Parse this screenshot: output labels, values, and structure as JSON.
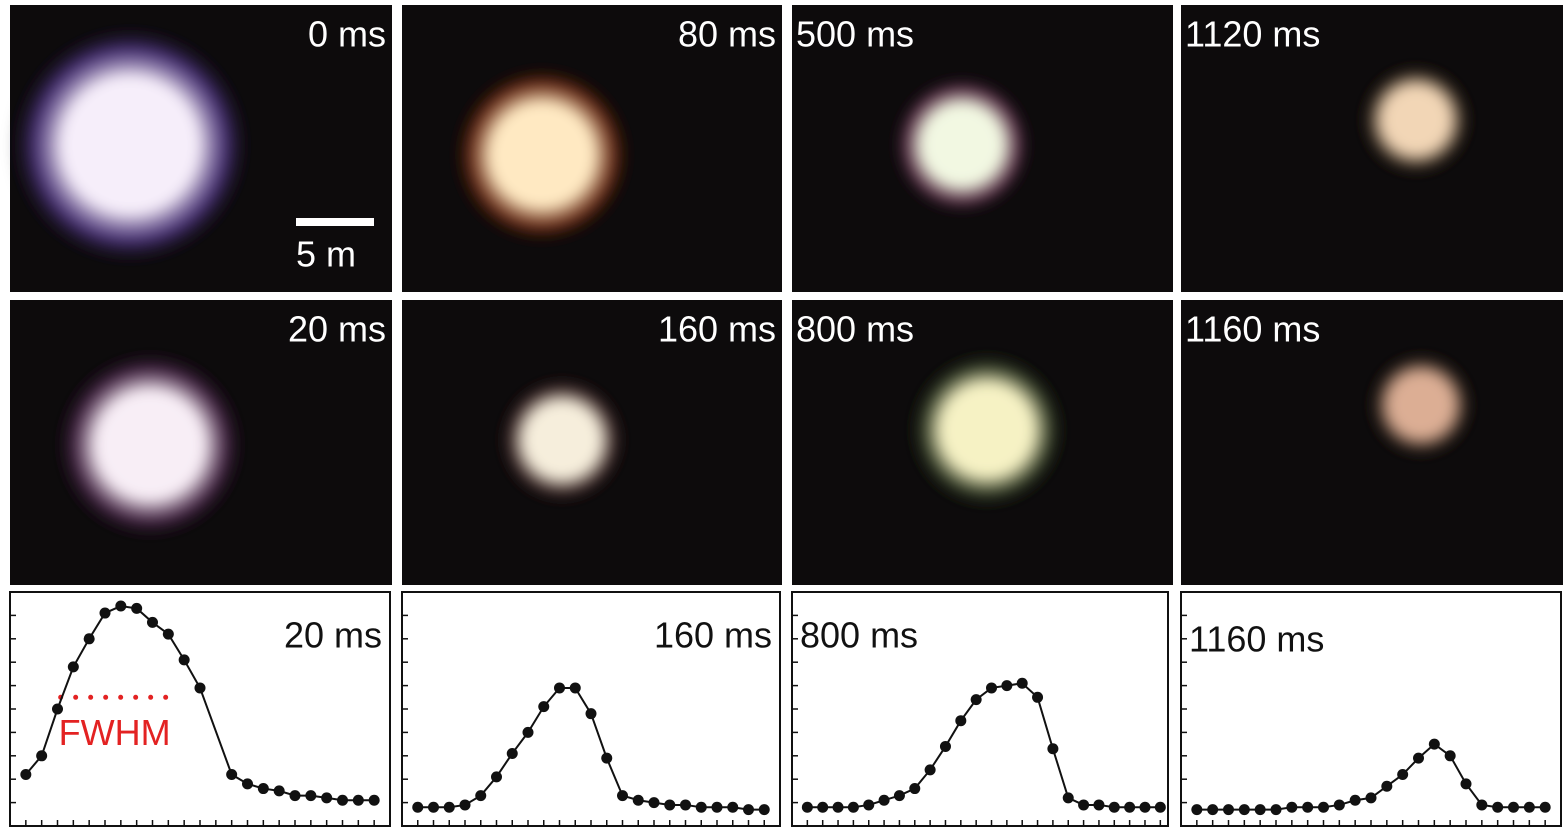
{
  "panels": [
    {
      "label": "0 ms"
    },
    {
      "label": "80 ms"
    },
    {
      "label": "500 ms"
    },
    {
      "label": "1120 ms"
    },
    {
      "label": "20 ms"
    },
    {
      "label": "160 ms"
    },
    {
      "label": "800 ms"
    },
    {
      "label": "1160 ms"
    }
  ],
  "scale_bar": "5 m",
  "chart_data": [
    {
      "type": "line",
      "title": "20 ms",
      "color": "#111111",
      "x": [
        1,
        2,
        3,
        4,
        5,
        6,
        7,
        8,
        9,
        10,
        11,
        12,
        14,
        15,
        16,
        17,
        18,
        19,
        20,
        21,
        22,
        23
      ],
      "values": [
        22,
        30,
        50,
        68,
        80,
        91,
        94,
        93,
        87,
        82,
        71,
        59,
        22,
        18,
        16,
        15,
        13,
        13,
        12,
        11,
        11,
        11
      ],
      "xlim": [
        0,
        24
      ],
      "ylim": [
        0,
        100
      ],
      "xticks": [
        0,
        1,
        2,
        3,
        4,
        5,
        6,
        7,
        8,
        9,
        10,
        11,
        12,
        13,
        14,
        15,
        16,
        17,
        18,
        19,
        20,
        21,
        22,
        23,
        24
      ],
      "yticks": [
        0,
        10,
        20,
        30,
        40,
        50,
        60,
        70,
        80,
        90,
        100
      ],
      "annotation": {
        "text": "FWHM",
        "y": 55,
        "x": [
          3.2,
          10.7
        ],
        "color": "#e32222"
      }
    },
    {
      "type": "line",
      "title": "160 ms",
      "color": "#111111",
      "x": [
        1,
        2,
        3,
        4,
        5,
        6,
        7,
        8,
        9,
        10,
        11,
        12,
        13,
        14,
        15,
        16,
        17,
        18,
        19,
        20,
        21,
        22,
        23
      ],
      "values": [
        8,
        8,
        8,
        9,
        13,
        21,
        31,
        40,
        51,
        59,
        59,
        48,
        29,
        13,
        11,
        10,
        9,
        9,
        8,
        8,
        8,
        7,
        7
      ],
      "xlim": [
        0,
        24
      ],
      "ylim": [
        0,
        100
      ],
      "xticks": [
        0,
        1,
        2,
        3,
        4,
        5,
        6,
        7,
        8,
        9,
        10,
        11,
        12,
        13,
        14,
        15,
        16,
        17,
        18,
        19,
        20,
        21,
        22,
        23,
        24
      ],
      "yticks": [
        0,
        10,
        20,
        30,
        40,
        50,
        60,
        70,
        80,
        90,
        100
      ]
    },
    {
      "type": "line",
      "title": "800 ms",
      "color": "#111111",
      "x": [
        1,
        2,
        3,
        4,
        5,
        6,
        7,
        8,
        9,
        10,
        11,
        12,
        13,
        14,
        15,
        16,
        17,
        18,
        19,
        20,
        21,
        22,
        23,
        24
      ],
      "values": [
        8,
        8,
        8,
        8,
        9,
        11,
        13,
        16,
        24,
        34,
        45,
        54,
        59,
        60,
        61,
        55,
        33,
        12,
        9,
        9,
        8,
        8,
        8,
        8
      ],
      "xlim": [
        0,
        24.5
      ],
      "ylim": [
        0,
        100
      ],
      "xticks": [
        0,
        1,
        2,
        3,
        4,
        5,
        6,
        7,
        8,
        9,
        10,
        11,
        12,
        13,
        14,
        15,
        16,
        17,
        18,
        19,
        20,
        21,
        22,
        23,
        24
      ],
      "yticks": [
        0,
        10,
        20,
        30,
        40,
        50,
        60,
        70,
        80,
        90,
        100
      ]
    },
    {
      "type": "line",
      "title": "1160 ms",
      "color": "#111111",
      "x": [
        1,
        2,
        3,
        4,
        5,
        6,
        7,
        8,
        9,
        10,
        11,
        12,
        13,
        14,
        15,
        16,
        17,
        18,
        19,
        20,
        21,
        22,
        23
      ],
      "values": [
        7,
        7,
        7,
        7,
        7,
        7,
        8,
        8,
        8,
        9,
        11,
        12,
        17,
        22,
        29,
        35,
        30,
        18,
        9,
        8,
        8,
        8,
        8
      ],
      "xlim": [
        0,
        24
      ],
      "ylim": [
        0,
        100
      ],
      "xticks": [
        0,
        1,
        2,
        3,
        4,
        5,
        6,
        7,
        8,
        9,
        10,
        11,
        12,
        13,
        14,
        15,
        16,
        17,
        18,
        19,
        20,
        21,
        22,
        23,
        24
      ],
      "yticks": [
        0,
        10,
        20,
        30,
        40,
        50,
        60,
        70,
        80,
        90,
        100
      ]
    }
  ]
}
